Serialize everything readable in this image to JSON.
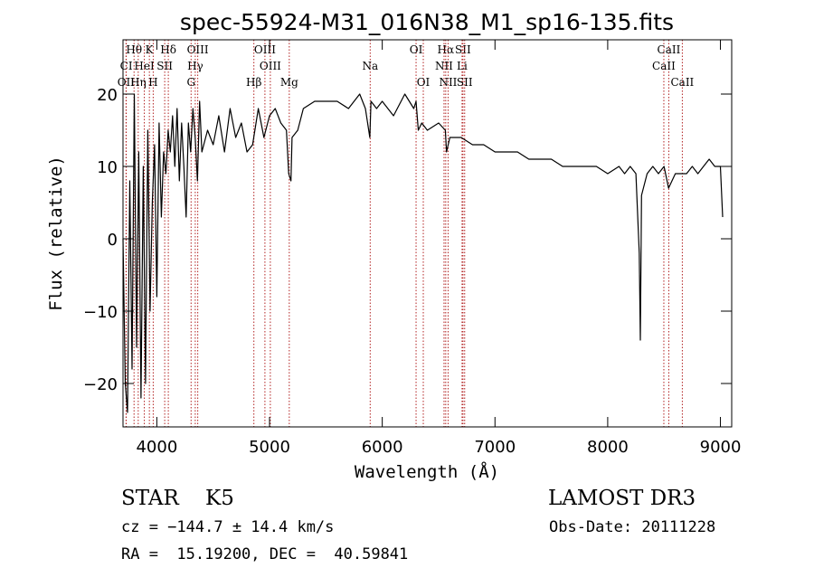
{
  "chart_data": {
    "type": "line",
    "title": "spec-55924-M31_016N38_M1_sp16-135.fits",
    "xlabel": "Wavelength (Å)",
    "ylabel": "Flux (relative)",
    "xlim": [
      3700,
      9100
    ],
    "ylim": [
      -26,
      27.5
    ],
    "x_ticks": [
      4000,
      5000,
      6000,
      7000,
      8000,
      9000
    ],
    "x_tick_labels": [
      "4000",
      "5000",
      "6000",
      "7000",
      "8000",
      "9000"
    ],
    "y_ticks": [
      -20,
      -10,
      0,
      10,
      20
    ],
    "y_tick_labels": [
      "−20",
      "−10",
      "0",
      "10",
      "20"
    ],
    "line_color": "#000000",
    "marker_color": "#b22222",
    "series": [
      {
        "name": "flux",
        "x": [
          3700,
          3720,
          3740,
          3760,
          3780,
          3800,
          3820,
          3840,
          3860,
          3880,
          3900,
          3920,
          3940,
          3960,
          3980,
          4000,
          4020,
          4040,
          4060,
          4080,
          4100,
          4120,
          4140,
          4160,
          4180,
          4200,
          4220,
          4240,
          4260,
          4280,
          4300,
          4320,
          4340,
          4360,
          4380,
          4400,
          4450,
          4500,
          4550,
          4600,
          4650,
          4700,
          4750,
          4800,
          4850,
          4900,
          4950,
          5000,
          5050,
          5100,
          5150,
          5170,
          5190,
          5200,
          5250,
          5300,
          5400,
          5500,
          5600,
          5700,
          5800,
          5850,
          5890,
          5900,
          5950,
          6000,
          6100,
          6200,
          6280,
          6300,
          6320,
          6350,
          6400,
          6500,
          6560,
          6570,
          6600,
          6700,
          6800,
          6900,
          7000,
          7100,
          7200,
          7300,
          7400,
          7500,
          7600,
          7700,
          7800,
          7900,
          8000,
          8100,
          8150,
          8200,
          8250,
          8280,
          8290,
          8300,
          8350,
          8400,
          8450,
          8500,
          8540,
          8600,
          8650,
          8700,
          8750,
          8800,
          8850,
          8900,
          8950,
          9000,
          9020
        ],
        "y": [
          0,
          -20,
          -24,
          8,
          -18,
          20,
          -15,
          12,
          -22,
          10,
          -20,
          15,
          -10,
          5,
          13,
          -8,
          16,
          3,
          12,
          9,
          15,
          12,
          17,
          10,
          18,
          8,
          16,
          10,
          3,
          16,
          12,
          18,
          14,
          8,
          19,
          12,
          15,
          13,
          17,
          12,
          18,
          14,
          16,
          12,
          13,
          18,
          14,
          17,
          18,
          16,
          15,
          9,
          8,
          14,
          15,
          18,
          19,
          19,
          19,
          18,
          20,
          18,
          14,
          19,
          18,
          19,
          17,
          20,
          18,
          19,
          15,
          16,
          15,
          16,
          15,
          12,
          14,
          14,
          13,
          13,
          12,
          12,
          12,
          11,
          11,
          11,
          10,
          10,
          10,
          10,
          9,
          10,
          9,
          10,
          9,
          -2,
          -14,
          6,
          9,
          10,
          9,
          10,
          7,
          9,
          9,
          9,
          10,
          9,
          10,
          11,
          10,
          10,
          3
        ]
      }
    ],
    "line_markers": [
      {
        "label": "Hθ",
        "x": 3798,
        "row": 0
      },
      {
        "label": "K",
        "x": 3934,
        "row": 0
      },
      {
        "label": "Hδ",
        "x": 4102,
        "row": 0
      },
      {
        "label": "OIII",
        "x": 4363,
        "row": 0
      },
      {
        "label": "OIII",
        "x": 4959,
        "row": 0
      },
      {
        "label": "OI",
        "x": 6300,
        "row": 0
      },
      {
        "label": "Hα",
        "x": 6563,
        "row": 0
      },
      {
        "label": "SII",
        "x": 6716,
        "row": 0
      },
      {
        "label": "CaII",
        "x": 8542,
        "row": 0
      },
      {
        "label": "CI",
        "x": 3729,
        "row": 1
      },
      {
        "label": "HeI",
        "x": 3889,
        "row": 1
      },
      {
        "label": "SII",
        "x": 4070,
        "row": 1
      },
      {
        "label": "Hγ",
        "x": 4341,
        "row": 1
      },
      {
        "label": "OIII",
        "x": 5007,
        "row": 1
      },
      {
        "label": "Na",
        "x": 5893,
        "row": 1
      },
      {
        "label": "NII",
        "x": 6548,
        "row": 1
      },
      {
        "label": "Li",
        "x": 6708,
        "row": 1
      },
      {
        "label": "CaII",
        "x": 8498,
        "row": 1
      },
      {
        "label": "OII",
        "x": 3727,
        "row": 2
      },
      {
        "label": "Hη",
        "x": 3835,
        "row": 2
      },
      {
        "label": "H",
        "x": 3968,
        "row": 2
      },
      {
        "label": "G",
        "x": 4304,
        "row": 2
      },
      {
        "label": "Hβ",
        "x": 4861,
        "row": 2
      },
      {
        "label": "Mg",
        "x": 5175,
        "row": 2
      },
      {
        "label": "OI",
        "x": 6364,
        "row": 2
      },
      {
        "label": "NII",
        "x": 6584,
        "row": 2
      },
      {
        "label": "SII",
        "x": 6731,
        "row": 2
      },
      {
        "label": "CaII",
        "x": 8662,
        "row": 2
      }
    ]
  },
  "info": {
    "object_type": "STAR",
    "subclass": "K5",
    "survey": "LAMOST DR3",
    "cz": "cz = −144.7 ± 14.4 km/s",
    "obs_date": "Obs-Date: 20111228",
    "radec": "RA =  15.19200, DEC =  40.59841"
  }
}
